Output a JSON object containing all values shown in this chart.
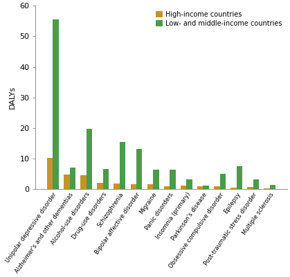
{
  "categories": [
    "Unipolar depressive disorder",
    "Alzheimer's and other dementias",
    "Alcohol-use disorders",
    "Drug-use disorders",
    "Schizophrenia",
    "Bipolar affective disorder",
    "Migraine",
    "Panic disorders",
    "Insomnia (primary)",
    "Parkinson's disease",
    "Obsessive compulsive disorder",
    "Epilepsy",
    "Post-traumatic stress disorder",
    "Multiple sclerosis"
  ],
  "high_income": [
    10.3,
    4.8,
    4.6,
    2.1,
    1.8,
    1.7,
    1.6,
    1.1,
    1.2,
    1.0,
    0.9,
    0.6,
    0.7,
    0.4
  ],
  "low_middle_income": [
    55.5,
    7.2,
    19.8,
    6.7,
    15.5,
    13.3,
    6.4,
    6.5,
    3.3,
    1.3,
    5.0,
    7.6,
    3.3,
    1.5
  ],
  "high_income_color": "#C8922A",
  "low_middle_income_color": "#4A9B4A",
  "ylabel": "DALYs",
  "ylim": [
    0,
    60
  ],
  "yticks": [
    0,
    10,
    20,
    30,
    40,
    50,
    60
  ],
  "legend_labels": [
    "High-income countries",
    "Low- and middle-income countries"
  ],
  "bar_width": 0.35,
  "background_color": "#ffffff",
  "axes_background": "#ffffff"
}
